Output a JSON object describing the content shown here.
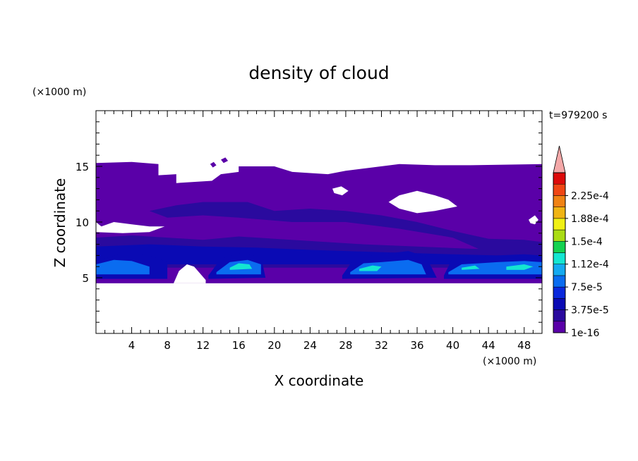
{
  "chart_data": {
    "type": "heatmap",
    "title": "density of cloud",
    "time_label": "t=979200 s",
    "xlabel": "X coordinate",
    "ylabel": "Z coordinate",
    "x_unit": "(×1000 m)",
    "y_unit": "(×1000 m)",
    "xlim": [
      0,
      50
    ],
    "ylim": [
      0,
      20
    ],
    "x_ticks": [
      4,
      8,
      12,
      16,
      20,
      24,
      28,
      32,
      36,
      40,
      44,
      48
    ],
    "y_ticks": [
      5,
      10,
      15
    ],
    "colorbar": {
      "levels": [
        1e-16,
        1.875e-05,
        3.75e-05,
        5.625e-05,
        7.5e-05,
        9.375e-05,
        0.000112,
        0.000131,
        0.00015,
        0.000169,
        0.000188,
        0.000206,
        0.000225,
        0.000244
      ],
      "labels": [
        "1e-16",
        "3.75e-5",
        "7.5e-5",
        "1.12e-4",
        "1.5e-4",
        "1.88e-4",
        "2.25e-4"
      ],
      "label_values": [
        1e-16,
        3.75e-05,
        7.5e-05,
        0.000112,
        0.00015,
        0.000188,
        0.000225
      ],
      "colors": [
        "#5a00a8",
        "#2a0a9e",
        "#0a0ab4",
        "#0a28dc",
        "#0a6cf0",
        "#14aaf0",
        "#14e6d2",
        "#14d250",
        "#aadc14",
        "#f0f014",
        "#f0b414",
        "#f08214",
        "#f04614",
        "#dc0a0a"
      ],
      "extend_color": "#f4a8a8"
    },
    "regions": [
      {
        "level": 1e-16,
        "polygon": [
          [
            0,
            15.3
          ],
          [
            4,
            15.4
          ],
          [
            7,
            15.2
          ],
          [
            7,
            14.2
          ],
          [
            9,
            14.3
          ],
          [
            9,
            13.5
          ],
          [
            13,
            13.7
          ],
          [
            14,
            14.3
          ],
          [
            16,
            14.5
          ],
          [
            16,
            15.0
          ],
          [
            20,
            15.0
          ],
          [
            22,
            14.5
          ],
          [
            26,
            14.3
          ],
          [
            28,
            14.6
          ],
          [
            34,
            15.2
          ],
          [
            38,
            15.1
          ],
          [
            42,
            15.1
          ],
          [
            50,
            15.2
          ],
          [
            50,
            4.5
          ],
          [
            0,
            4.5
          ]
        ]
      },
      {
        "level": 1.875e-05,
        "polygon": [
          [
            6,
            11.0
          ],
          [
            9,
            11.5
          ],
          [
            12,
            11.8
          ],
          [
            17,
            11.8
          ],
          [
            20,
            11.0
          ],
          [
            24,
            11.2
          ],
          [
            28,
            11.0
          ],
          [
            32,
            10.6
          ],
          [
            36,
            10.0
          ],
          [
            40,
            9.2
          ],
          [
            44,
            8.5
          ],
          [
            48,
            8.4
          ],
          [
            50,
            8.2
          ],
          [
            50,
            7.0
          ],
          [
            44,
            7.2
          ],
          [
            40,
            8.6
          ],
          [
            34,
            9.4
          ],
          [
            28,
            10.0
          ],
          [
            22,
            10.0
          ],
          [
            16,
            10.4
          ],
          [
            12,
            10.6
          ],
          [
            8,
            10.4
          ]
        ]
      },
      {
        "level": 1.875e-05,
        "polygon": [
          [
            0,
            8.6
          ],
          [
            4,
            8.8
          ],
          [
            8,
            8.6
          ],
          [
            12,
            8.4
          ],
          [
            16,
            8.7
          ],
          [
            20,
            8.5
          ],
          [
            24,
            8.3
          ],
          [
            30,
            8.0
          ],
          [
            36,
            7.8
          ],
          [
            42,
            7.6
          ],
          [
            50,
            7.5
          ],
          [
            50,
            5.9
          ],
          [
            0,
            5.9
          ]
        ]
      },
      {
        "level": 3.75e-05,
        "polygon": [
          [
            0,
            7.8
          ],
          [
            6,
            8.0
          ],
          [
            12,
            7.8
          ],
          [
            18,
            7.7
          ],
          [
            24,
            7.5
          ],
          [
            32,
            7.3
          ],
          [
            40,
            7.1
          ],
          [
            50,
            6.9
          ],
          [
            50,
            6.2
          ],
          [
            0,
            6.2
          ]
        ]
      },
      {
        "level": 3.75e-05,
        "polygon": [
          [
            0,
            6.5
          ],
          [
            3,
            7.2
          ],
          [
            6,
            7.0
          ],
          [
            8,
            6.4
          ],
          [
            8,
            4.9
          ],
          [
            0,
            4.9
          ]
        ]
      },
      {
        "level": 3.75e-05,
        "polygon": [
          [
            12.6,
            5.2
          ],
          [
            14,
            6.7
          ],
          [
            16,
            7.2
          ],
          [
            18.5,
            6.9
          ],
          [
            19,
            5.0
          ],
          [
            12.6,
            4.9
          ]
        ]
      },
      {
        "level": 3.75e-05,
        "polygon": [
          [
            27.6,
            5.2
          ],
          [
            29,
            6.8
          ],
          [
            32,
            7.1
          ],
          [
            35,
            7.4
          ],
          [
            37,
            6.9
          ],
          [
            38.2,
            5.0
          ],
          [
            27.6,
            4.9
          ]
        ]
      },
      {
        "level": 3.75e-05,
        "polygon": [
          [
            39,
            5.2
          ],
          [
            40,
            6.8
          ],
          [
            43,
            6.9
          ],
          [
            45,
            7.0
          ],
          [
            48,
            7.1
          ],
          [
            50,
            7.0
          ],
          [
            50,
            4.9
          ],
          [
            39,
            4.9
          ]
        ]
      },
      {
        "level": 7.5e-05,
        "polygon": [
          [
            0,
            6.2
          ],
          [
            2,
            6.6
          ],
          [
            4,
            6.5
          ],
          [
            6,
            6.0
          ],
          [
            6,
            5.3
          ],
          [
            0,
            5.3
          ]
        ]
      },
      {
        "level": 7.5e-05,
        "polygon": [
          [
            13.5,
            5.5
          ],
          [
            15,
            6.4
          ],
          [
            17,
            6.6
          ],
          [
            18.5,
            6.2
          ],
          [
            18.5,
            5.3
          ],
          [
            13.5,
            5.3
          ]
        ]
      },
      {
        "level": 7.5e-05,
        "polygon": [
          [
            28.5,
            5.5
          ],
          [
            30,
            6.3
          ],
          [
            32,
            6.4
          ],
          [
            35,
            6.6
          ],
          [
            36.5,
            6.2
          ],
          [
            37,
            5.3
          ],
          [
            28.5,
            5.3
          ]
        ]
      },
      {
        "level": 7.5e-05,
        "polygon": [
          [
            39.5,
            5.5
          ],
          [
            41,
            6.2
          ],
          [
            43,
            6.3
          ],
          [
            45,
            6.4
          ],
          [
            48,
            6.5
          ],
          [
            50,
            6.4
          ],
          [
            50,
            5.3
          ],
          [
            39.5,
            5.3
          ]
        ]
      },
      {
        "level": 0.000112,
        "polygon": [
          [
            15,
            5.9
          ],
          [
            16,
            6.3
          ],
          [
            17.2,
            6.2
          ],
          [
            17.5,
            5.8
          ],
          [
            15,
            5.7
          ]
        ]
      },
      {
        "level": 0.000112,
        "polygon": [
          [
            29.5,
            5.8
          ],
          [
            31,
            6.1
          ],
          [
            32,
            6.0
          ],
          [
            31.5,
            5.6
          ],
          [
            29.5,
            5.6
          ]
        ]
      },
      {
        "level": 0.000112,
        "polygon": [
          [
            41,
            5.9
          ],
          [
            42.5,
            6.1
          ],
          [
            43,
            5.8
          ],
          [
            41,
            5.7
          ]
        ]
      },
      {
        "level": 0.000112,
        "polygon": [
          [
            46,
            6.0
          ],
          [
            48,
            6.2
          ],
          [
            49,
            6.0
          ],
          [
            48,
            5.7
          ],
          [
            46,
            5.7
          ]
        ]
      },
      {
        "level": 1e-16,
        "polygon": [
          [
            14,
            15.6
          ],
          [
            14.5,
            15.8
          ],
          [
            14.8,
            15.5
          ],
          [
            14.3,
            15.3
          ]
        ]
      },
      {
        "level": 1e-16,
        "polygon": [
          [
            12.8,
            15.2
          ],
          [
            13.2,
            15.4
          ],
          [
            13.5,
            15.1
          ],
          [
            13.1,
            14.9
          ]
        ]
      }
    ],
    "gaps": [
      {
        "polygon": [
          [
            8.7,
            4.5
          ],
          [
            9.3,
            5.6
          ],
          [
            10.2,
            6.2
          ],
          [
            11,
            6.0
          ],
          [
            12.3,
            4.8
          ],
          [
            12.3,
            4.5
          ]
        ]
      },
      {
        "polygon": [
          [
            0,
            10.0
          ],
          [
            0.6,
            9.6
          ],
          [
            2,
            10.0
          ],
          [
            4,
            9.8
          ],
          [
            6,
            9.6
          ],
          [
            7.7,
            9.6
          ],
          [
            6,
            9.1
          ],
          [
            3,
            9.0
          ],
          [
            0,
            9.1
          ]
        ]
      },
      {
        "polygon": [
          [
            32.8,
            11.8
          ],
          [
            34,
            12.4
          ],
          [
            36,
            12.8
          ],
          [
            38,
            12.4
          ],
          [
            39.5,
            12.0
          ],
          [
            40.5,
            11.4
          ],
          [
            38,
            11.0
          ],
          [
            36,
            10.8
          ],
          [
            34,
            11.2
          ]
        ]
      },
      {
        "polygon": [
          [
            26.5,
            13.0
          ],
          [
            27.5,
            13.2
          ],
          [
            28.3,
            12.8
          ],
          [
            27.6,
            12.4
          ],
          [
            26.7,
            12.6
          ]
        ]
      },
      {
        "polygon": [
          [
            48.5,
            10.2
          ],
          [
            49.2,
            10.6
          ],
          [
            49.6,
            10.2
          ],
          [
            49.2,
            9.8
          ],
          [
            48.7,
            9.9
          ]
        ]
      }
    ]
  }
}
